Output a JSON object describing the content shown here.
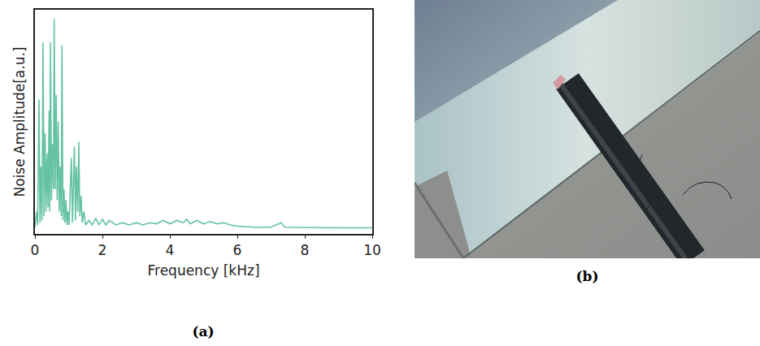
{
  "chart_data": {
    "type": "line",
    "x_label": "Frequency [kHz]",
    "y_label": "Noise Amplitude[a.u.]",
    "x": [
      0,
      0.05,
      0.08,
      0.12,
      0.15,
      0.18,
      0.21,
      0.24,
      0.27,
      0.3,
      0.33,
      0.36,
      0.39,
      0.42,
      0.44,
      0.46,
      0.49,
      0.52,
      0.55,
      0.57,
      0.6,
      0.63,
      0.66,
      0.69,
      0.72,
      0.75,
      0.78,
      0.8,
      0.83,
      0.86,
      0.89,
      0.92,
      0.95,
      0.98,
      1.01,
      1.05,
      1.08,
      1.11,
      1.14,
      1.17,
      1.2,
      1.23,
      1.27,
      1.3,
      1.33,
      1.37,
      1.4,
      1.45,
      1.5,
      1.6,
      1.7,
      1.8,
      1.9,
      2.0,
      2.1,
      2.2,
      2.4,
      2.6,
      2.8,
      3.0,
      3.2,
      3.4,
      3.6,
      3.8,
      4.0,
      4.2,
      4.4,
      4.5,
      4.6,
      4.8,
      5.0,
      5.2,
      5.4,
      5.6,
      5.8,
      6.0,
      6.5,
      7.0,
      7.3,
      7.4,
      8,
      9,
      10
    ],
    "values": [
      0.03,
      0.1,
      0.04,
      0.6,
      0.05,
      0.3,
      0.06,
      0.855,
      0.08,
      0.45,
      0.1,
      0.36,
      0.12,
      0.55,
      0.1,
      0.855,
      0.15,
      0.4,
      0.2,
      0.96,
      0.2,
      0.62,
      0.15,
      0.5,
      0.1,
      0.3,
      0.08,
      0.84,
      0.06,
      0.2,
      0.05,
      0.15,
      0.04,
      0.1,
      0.04,
      0.25,
      0.34,
      0.05,
      0.2,
      0.39,
      0.06,
      0.3,
      0.1,
      0.41,
      0.08,
      0.17,
      0.05,
      0.1,
      0.04,
      0.06,
      0.04,
      0.07,
      0.04,
      0.065,
      0.04,
      0.06,
      0.04,
      0.05,
      0.04,
      0.05,
      0.04,
      0.05,
      0.045,
      0.06,
      0.045,
      0.06,
      0.05,
      0.065,
      0.045,
      0.06,
      0.045,
      0.055,
      0.045,
      0.05,
      0.04,
      0.035,
      0.03,
      0.03,
      0.05,
      0.03,
      0.028,
      0.027,
      0.027
    ],
    "color": "#66c2a5",
    "xlim": [
      0,
      10
    ],
    "xticks": [
      0,
      2,
      4,
      6,
      8,
      10
    ],
    "ylim": [
      0,
      1
    ],
    "tick_labels": "x",
    "grid": false
  },
  "panel_labels": [
    "(a)",
    "(b)"
  ]
}
